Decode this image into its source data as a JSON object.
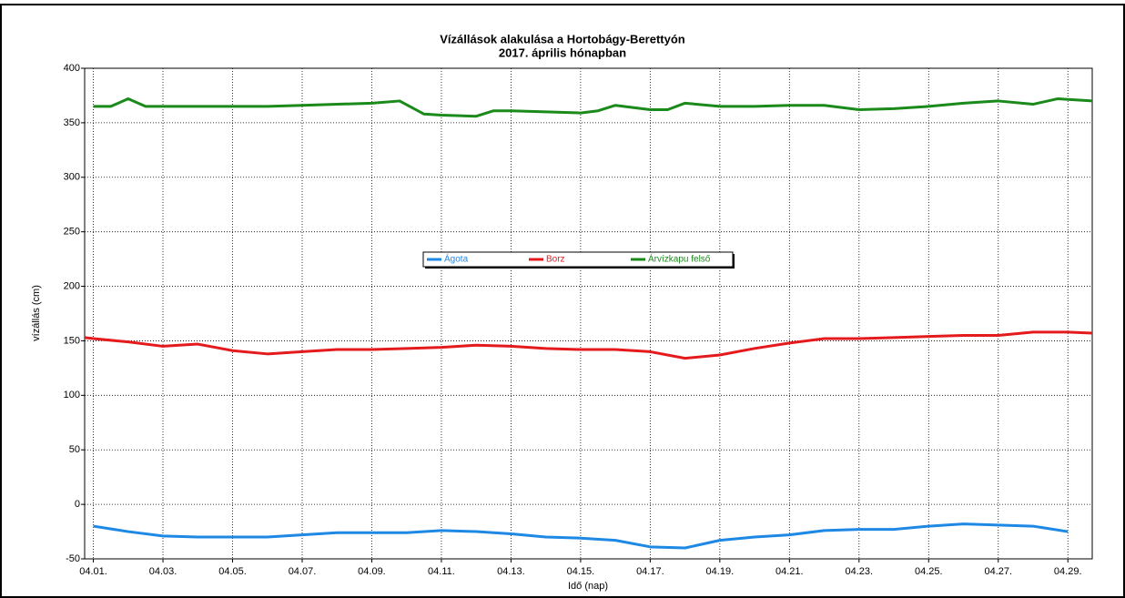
{
  "chart_data": {
    "type": "line",
    "title": "Vízállások alakulása a Hortobágy-Berettyón",
    "subtitle": "2017. április hónapban",
    "y_label": "vízállás (cm)",
    "x_label": "Idő (nap)",
    "xlim": [
      0.75,
      29.7
    ],
    "ylim": [
      -50,
      400
    ],
    "yticks": [
      -50,
      0,
      50,
      100,
      150,
      200,
      250,
      300,
      350,
      400
    ],
    "xticks": [
      {
        "value": 1,
        "label": "04.01."
      },
      {
        "value": 3,
        "label": "04.03."
      },
      {
        "value": 5,
        "label": "04.05."
      },
      {
        "value": 7,
        "label": "04.07."
      },
      {
        "value": 9,
        "label": "04.09."
      },
      {
        "value": 11,
        "label": "04.11."
      },
      {
        "value": 13,
        "label": "04.13."
      },
      {
        "value": 15,
        "label": "04.15."
      },
      {
        "value": 17,
        "label": "04.17."
      },
      {
        "value": 19,
        "label": "04.19."
      },
      {
        "value": 21,
        "label": "04.21."
      },
      {
        "value": 23,
        "label": "04.23."
      },
      {
        "value": 25,
        "label": "04.25."
      },
      {
        "value": 27,
        "label": "04.27."
      },
      {
        "value": 29,
        "label": "04.29."
      }
    ],
    "grid": true,
    "legend": "center",
    "series": [
      {
        "name": "Ágota",
        "color": "#1e88e5",
        "x": [
          1,
          2,
          3,
          4,
          5,
          6,
          7,
          8,
          9,
          10,
          11,
          12,
          13,
          14,
          15,
          16,
          17,
          18,
          19,
          20,
          21,
          22,
          23,
          24,
          25,
          26,
          27,
          28,
          29
        ],
        "values": [
          -20,
          -25,
          -29,
          -30,
          -30,
          -30,
          -28,
          -26,
          -26,
          -26,
          -24,
          -25,
          -27,
          -30,
          -31,
          -33,
          -39,
          -40,
          -33,
          -30,
          -28,
          -24,
          -23,
          -23,
          -20,
          -18,
          -19,
          -20,
          -25
        ]
      },
      {
        "name": "Borz",
        "color": "#e41a1c",
        "x": [
          0.75,
          1,
          2,
          3,
          4,
          5,
          6,
          7,
          8,
          9,
          10,
          11,
          12,
          13,
          14,
          15,
          16,
          17,
          18,
          19,
          20,
          21,
          22,
          23,
          24,
          25,
          26,
          27,
          28,
          29,
          29.7
        ],
        "values": [
          153,
          152,
          149,
          145,
          147,
          141,
          138,
          140,
          142,
          142,
          143,
          144,
          146,
          145,
          143,
          142,
          142,
          140,
          134,
          137,
          143,
          148,
          152,
          152,
          153,
          154,
          155,
          155,
          158,
          158,
          157
        ]
      },
      {
        "name": "Árvízkapu felső",
        "color": "#1a8a1a",
        "x": [
          1,
          1.5,
          2,
          2.5,
          3,
          4,
          5,
          6,
          7,
          8,
          9,
          9.8,
          10.5,
          11,
          12,
          12.5,
          13,
          14,
          15,
          15.5,
          16,
          17,
          17.5,
          18,
          19,
          20,
          21,
          22,
          23,
          24,
          25,
          26,
          27,
          28,
          28.7,
          29.7
        ],
        "values": [
          365,
          365,
          372,
          365,
          365,
          365,
          365,
          365,
          366,
          367,
          368,
          370,
          358,
          357,
          356,
          361,
          361,
          360,
          359,
          361,
          366,
          362,
          362,
          368,
          365,
          365,
          366,
          366,
          362,
          363,
          365,
          368,
          370,
          367,
          372,
          370
        ]
      }
    ]
  }
}
